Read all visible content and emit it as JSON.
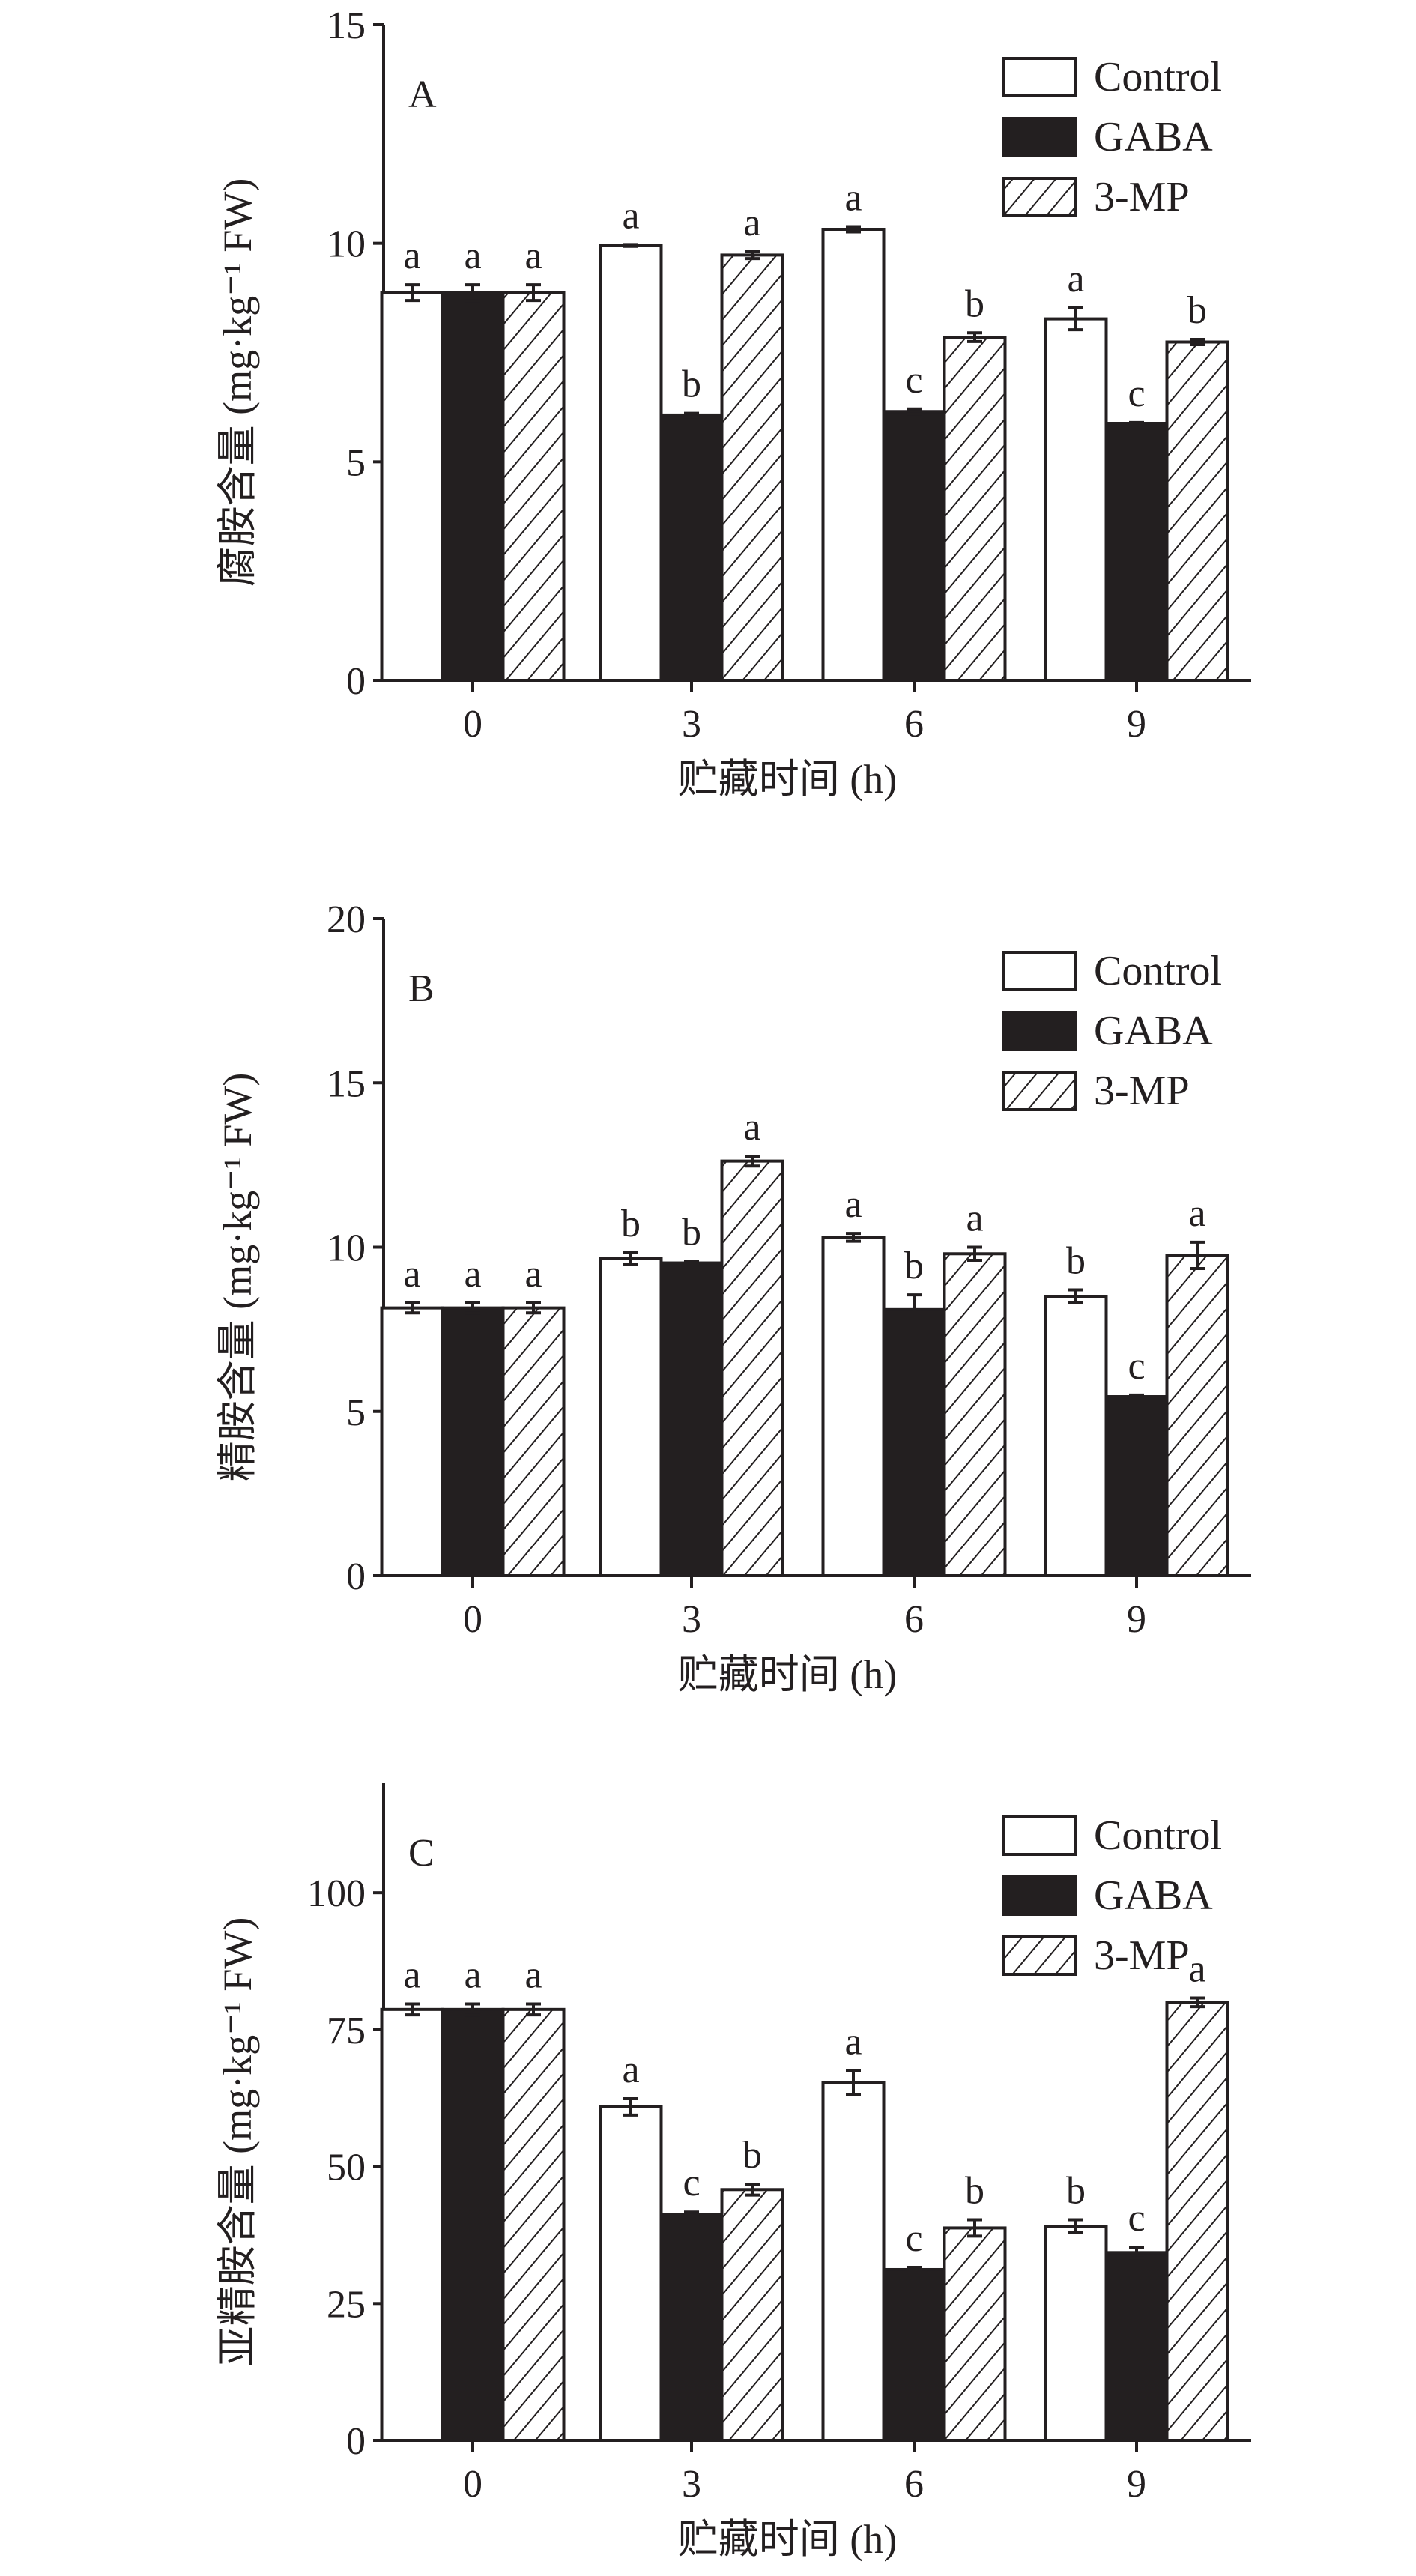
{
  "colors": {
    "control": "#ffffff",
    "gaba": "#231f20",
    "mp": "hatch",
    "stroke": "#231f20"
  },
  "chart_data": [
    {
      "type": "bar",
      "panel_label": "A",
      "xlabel": "贮藏时间 (h)",
      "ylabel": "腐胺含量 (mg·kg⁻¹ FW)",
      "categories": [
        "0",
        "3",
        "6",
        "9"
      ],
      "ylim": [
        0,
        15
      ],
      "yticks": [
        "0",
        "5",
        "10",
        "15"
      ],
      "legend_position": "top-right",
      "series": [
        {
          "name": "Control",
          "values": [
            8.87,
            9.95,
            10.32,
            8.27
          ],
          "errors": [
            0.18,
            0.02,
            0.06,
            0.25
          ],
          "letters": [
            "a",
            "a",
            "a",
            "a"
          ]
        },
        {
          "name": "GABA",
          "values": [
            8.87,
            6.07,
            6.15,
            5.88
          ],
          "errors": [
            0.18,
            0.04,
            0.06,
            0.02
          ],
          "letters": [
            "a",
            "b",
            "c",
            "c"
          ]
        },
        {
          "name": "3-MP",
          "values": [
            8.87,
            9.73,
            7.85,
            7.74
          ],
          "errors": [
            0.18,
            0.08,
            0.1,
            0.06
          ],
          "letters": [
            "a",
            "a",
            "b",
            "b"
          ]
        }
      ]
    },
    {
      "type": "bar",
      "panel_label": "B",
      "xlabel": "贮藏时间 (h)",
      "ylabel": "精胺含量 (mg·kg⁻¹ FW)",
      "categories": [
        "0",
        "3",
        "6",
        "9"
      ],
      "ylim": [
        0,
        20
      ],
      "yticks": [
        "0",
        "5",
        "10",
        "15",
        "20"
      ],
      "legend_position": "top-right",
      "series": [
        {
          "name": "Control",
          "values": [
            8.15,
            9.65,
            10.3,
            8.5
          ],
          "errors": [
            0.15,
            0.18,
            0.12,
            0.2
          ],
          "letters": [
            "a",
            "b",
            "a",
            "b"
          ]
        },
        {
          "name": "GABA",
          "values": [
            8.15,
            9.52,
            8.1,
            5.45
          ],
          "errors": [
            0.15,
            0.05,
            0.45,
            0.05
          ],
          "letters": [
            "a",
            "b",
            "b",
            "c"
          ]
        },
        {
          "name": "3-MP",
          "values": [
            8.15,
            12.62,
            9.8,
            9.75
          ],
          "errors": [
            0.15,
            0.15,
            0.2,
            0.4
          ],
          "letters": [
            "a",
            "a",
            "a",
            "a"
          ]
        }
      ]
    },
    {
      "type": "bar",
      "panel_label": "C",
      "xlabel": "贮藏时间 (h)",
      "ylabel": "亚精胺含量 (mg·kg⁻¹ FW)",
      "categories": [
        "0",
        "3",
        "6",
        "9"
      ],
      "ylim": [
        0,
        120
      ],
      "yticks": [
        "0",
        "25",
        "50",
        "75",
        "100"
      ],
      "legend_position": "top-right",
      "series": [
        {
          "name": "Control",
          "values": [
            78.7,
            60.9,
            65.3,
            39.1
          ],
          "errors": [
            1.0,
            1.5,
            2.2,
            1.2
          ],
          "letters": [
            "a",
            "a",
            "a",
            "b"
          ]
        },
        {
          "name": "GABA",
          "values": [
            78.7,
            41.2,
            31.2,
            34.3
          ],
          "errors": [
            1.0,
            0.5,
            0.4,
            1.0
          ],
          "letters": [
            "a",
            "c",
            "c",
            "c"
          ]
        },
        {
          "name": "3-MP",
          "values": [
            78.7,
            45.8,
            38.8,
            80.0
          ],
          "errors": [
            1.0,
            1.0,
            1.5,
            0.8
          ],
          "letters": [
            "a",
            "b",
            "b",
            "a"
          ]
        }
      ]
    }
  ]
}
